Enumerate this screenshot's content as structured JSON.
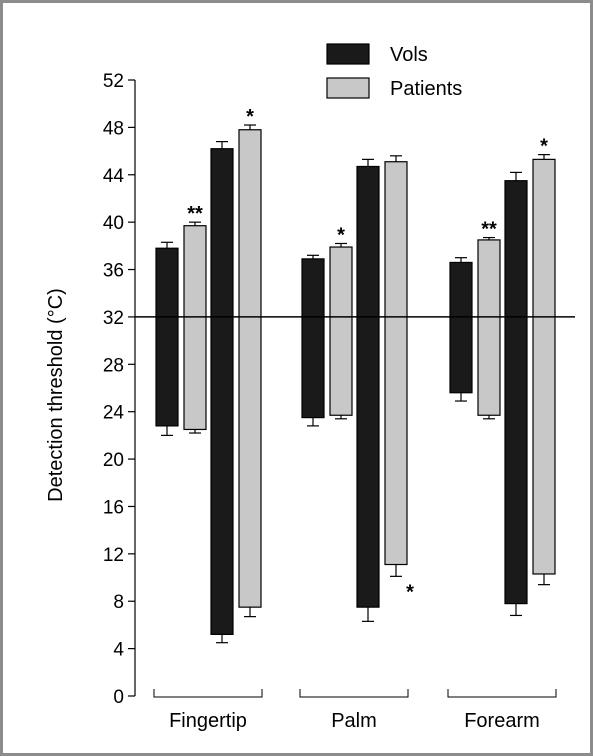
{
  "chart_data": {
    "type": "bar",
    "title": "",
    "xlabel": "",
    "ylabel": "Detection threshold (°C)",
    "ylim": [
      0,
      52
    ],
    "yticks": [
      0,
      4,
      8,
      12,
      16,
      20,
      24,
      28,
      32,
      36,
      40,
      44,
      48,
      52
    ],
    "baseline": 32,
    "grid": false,
    "legend_position": "top-right",
    "groups": [
      "Fingertip",
      "Palm",
      "Forearm"
    ],
    "series": [
      {
        "name": "Vols",
        "color": "#1a1a1a"
      },
      {
        "name": "Patients",
        "color": "#c8c8c8"
      }
    ],
    "bars": [
      {
        "group": "Fingertip",
        "series": "Vols",
        "top": 37.8,
        "bottom": 22.8,
        "err_top": 38.3,
        "err_bottom": 22.0,
        "sig_top": "",
        "sig_bottom": ""
      },
      {
        "group": "Fingertip",
        "series": "Patients",
        "top": 39.7,
        "bottom": 22.5,
        "err_top": 40.0,
        "err_bottom": 22.2,
        "sig_top": "**",
        "sig_bottom": ""
      },
      {
        "group": "Fingertip",
        "series": "Vols",
        "top": 46.2,
        "bottom": 5.2,
        "err_top": 46.8,
        "err_bottom": 4.5,
        "sig_top": "",
        "sig_bottom": ""
      },
      {
        "group": "Fingertip",
        "series": "Patients",
        "top": 47.8,
        "bottom": 7.5,
        "err_top": 48.2,
        "err_bottom": 6.7,
        "sig_top": "*",
        "sig_bottom": ""
      },
      {
        "group": "Palm",
        "series": "Vols",
        "top": 36.9,
        "bottom": 23.5,
        "err_top": 37.2,
        "err_bottom": 22.8,
        "sig_top": "",
        "sig_bottom": ""
      },
      {
        "group": "Palm",
        "series": "Patients",
        "top": 37.9,
        "bottom": 23.7,
        "err_top": 38.2,
        "err_bottom": 23.4,
        "sig_top": "*",
        "sig_bottom": ""
      },
      {
        "group": "Palm",
        "series": "Vols",
        "top": 44.7,
        "bottom": 7.5,
        "err_top": 45.3,
        "err_bottom": 6.3,
        "sig_top": "",
        "sig_bottom": ""
      },
      {
        "group": "Palm",
        "series": "Patients",
        "top": 45.1,
        "bottom": 11.1,
        "err_top": 45.6,
        "err_bottom": 10.1,
        "sig_top": "",
        "sig_bottom": "*"
      },
      {
        "group": "Forearm",
        "series": "Vols",
        "top": 36.6,
        "bottom": 25.6,
        "err_top": 37.0,
        "err_bottom": 24.9,
        "sig_top": "",
        "sig_bottom": ""
      },
      {
        "group": "Forearm",
        "series": "Patients",
        "top": 38.5,
        "bottom": 23.7,
        "err_top": 38.7,
        "err_bottom": 23.4,
        "sig_top": "**",
        "sig_bottom": ""
      },
      {
        "group": "Forearm",
        "series": "Vols",
        "top": 43.5,
        "bottom": 7.8,
        "err_top": 44.2,
        "err_bottom": 6.8,
        "sig_top": "",
        "sig_bottom": ""
      },
      {
        "group": "Forearm",
        "series": "Patients",
        "top": 45.3,
        "bottom": 10.3,
        "err_top": 45.7,
        "err_bottom": 9.4,
        "sig_top": "*",
        "sig_bottom": ""
      }
    ]
  }
}
